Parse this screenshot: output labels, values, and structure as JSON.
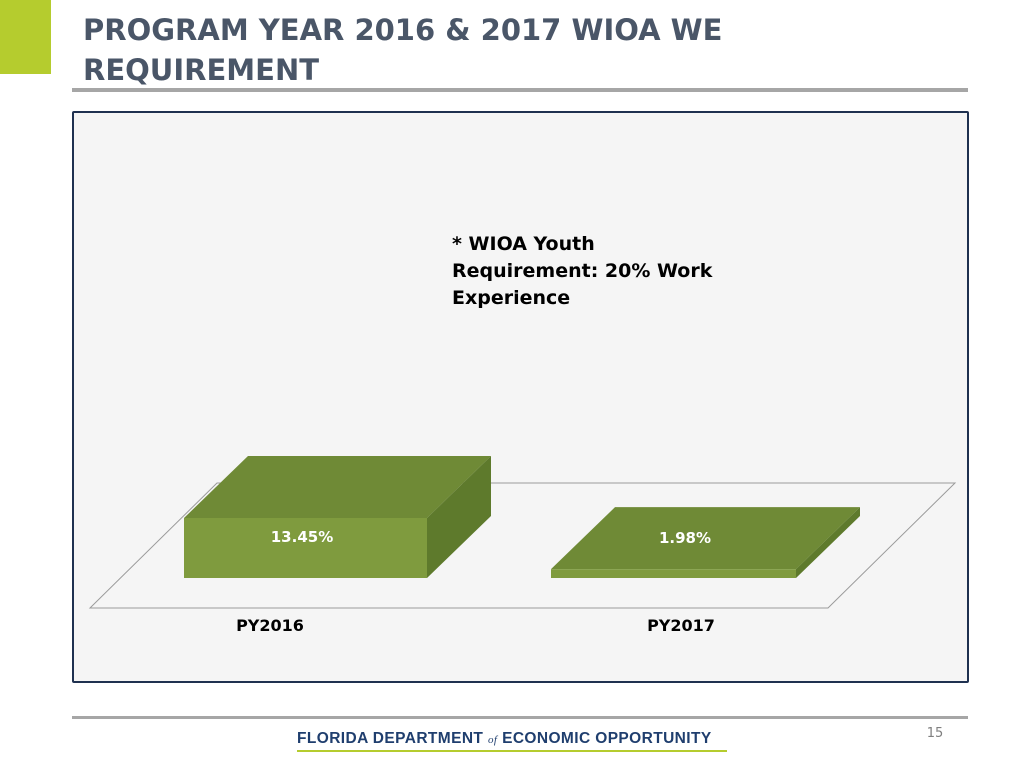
{
  "slide": {
    "title": "PROGRAM YEAR 2016 & 2017 WIOA WE REQUIREMENT",
    "page_number": "15",
    "footer": {
      "logo_part1": "FLORIDA DEPARTMENT ",
      "logo_of": "of",
      "logo_part2": " ECONOMIC OPPORTUNITY"
    },
    "colors": {
      "accent": "#b5cc2e",
      "title": "#4a5668",
      "frame_border": "#1f3150",
      "bar_front": "#7f9b3e",
      "bar_top": "#6f8a36",
      "bar_side": "#5e7a2c"
    }
  },
  "chart_data": {
    "type": "bar",
    "style": "3d",
    "categories": [
      "PY2016",
      "PY2017"
    ],
    "values": [
      13.45,
      1.98
    ],
    "data_labels": [
      "13.45%",
      "1.98%"
    ],
    "ylim": [
      0,
      20
    ],
    "grid": false,
    "annotation": [
      "* WIOA Youth",
      "Requirement:  20% Work",
      "Experience"
    ]
  }
}
